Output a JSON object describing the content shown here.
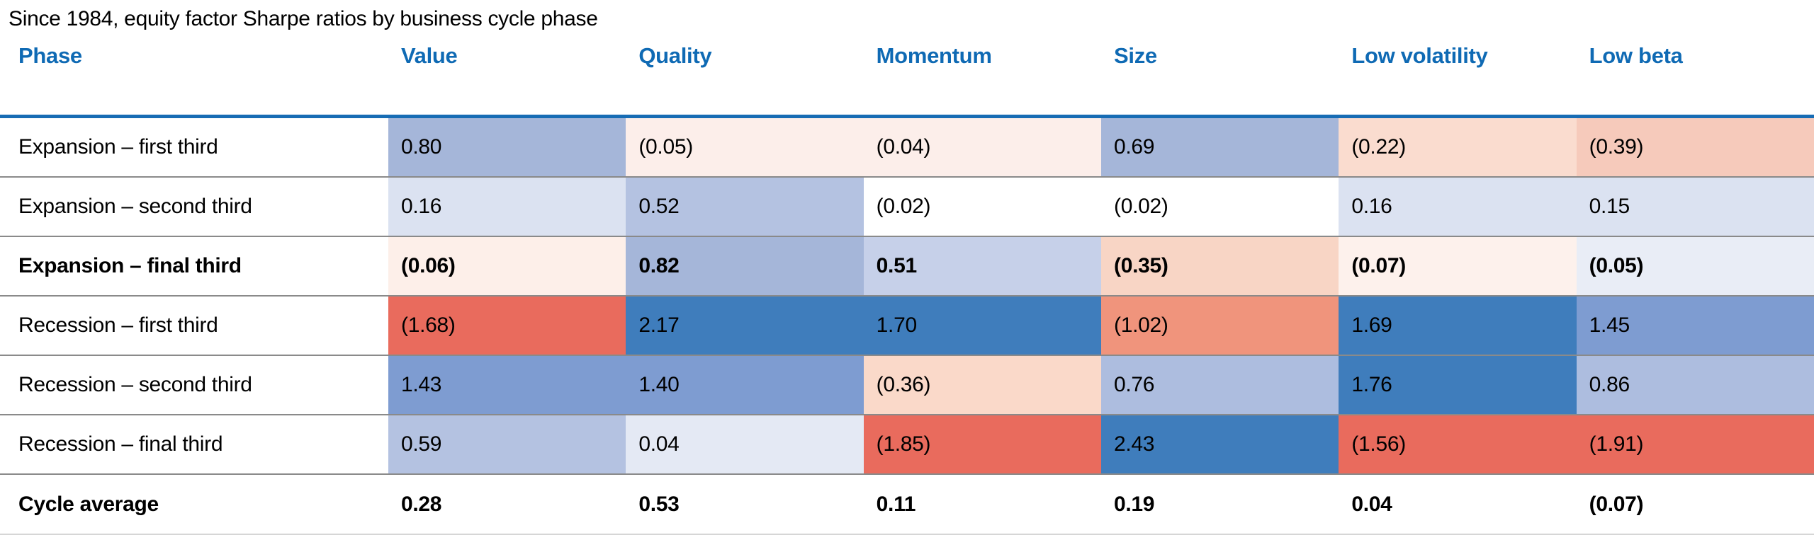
{
  "title": "Since 1984, equity factor Sharpe ratios by business cycle phase",
  "colors": {
    "header_text": "#0f6ab4",
    "header_rule": "#176cb4",
    "row_divider": "#8a8a8a",
    "bottom_rule": "#d6d6d6",
    "positive_strong": "#3f7dbc",
    "negative_strong": "#e96b5d"
  },
  "table": {
    "columns": [
      "Phase",
      "Value",
      "Quality",
      "Momentum",
      "Size",
      "Low volatility",
      "Low beta"
    ],
    "rows": [
      {
        "label": "Expansion – first third",
        "bold": false,
        "cycle_average": false,
        "cells": [
          {
            "text": "0.80",
            "bg": "#a5b6d9"
          },
          {
            "text": "(0.05)",
            "bg": "#fceeea"
          },
          {
            "text": "(0.04)",
            "bg": "#fceeea"
          },
          {
            "text": "0.69",
            "bg": "#a5b6d9"
          },
          {
            "text": "(0.22)",
            "bg": "#fadccf"
          },
          {
            "text": "(0.39)",
            "bg": "#f6cabb"
          }
        ]
      },
      {
        "label": "Expansion – second third",
        "bold": false,
        "cycle_average": false,
        "cells": [
          {
            "text": "0.16",
            "bg": "#dbe2f1"
          },
          {
            "text": "0.52",
            "bg": "#b4c2e1"
          },
          {
            "text": "(0.02)",
            "bg": "#ffffff"
          },
          {
            "text": "(0.02)",
            "bg": "#ffffff"
          },
          {
            "text": "0.16",
            "bg": "#dbe2f1"
          },
          {
            "text": "0.15",
            "bg": "#dbe2f1"
          }
        ]
      },
      {
        "label": "Expansion – final third",
        "bold": true,
        "cycle_average": false,
        "cells": [
          {
            "text": "(0.06)",
            "bg": "#fdefe9"
          },
          {
            "text": "0.82",
            "bg": "#a5b6d9"
          },
          {
            "text": "0.51",
            "bg": "#c6d0e9"
          },
          {
            "text": "(0.35)",
            "bg": "#f8d5c5"
          },
          {
            "text": "(0.07)",
            "bg": "#fdf1ec"
          },
          {
            "text": "(0.05)",
            "bg": "#e9edf6"
          }
        ]
      },
      {
        "label": "Recession – first third",
        "bold": false,
        "cycle_average": false,
        "cells": [
          {
            "text": "(1.68)",
            "bg": "#e96b5d"
          },
          {
            "text": "2.17",
            "bg": "#3f7dbc"
          },
          {
            "text": "1.70",
            "bg": "#3f7dbc"
          },
          {
            "text": "(1.02)",
            "bg": "#f0947c"
          },
          {
            "text": "1.69",
            "bg": "#3f7dbc"
          },
          {
            "text": "1.45",
            "bg": "#7e9cd1"
          }
        ]
      },
      {
        "label": "Recession – second third",
        "bold": false,
        "cycle_average": false,
        "cells": [
          {
            "text": "1.43",
            "bg": "#7e9cd1"
          },
          {
            "text": "1.40",
            "bg": "#7e9cd1"
          },
          {
            "text": "(0.36)",
            "bg": "#fad9c9"
          },
          {
            "text": "0.76",
            "bg": "#adbddf"
          },
          {
            "text": "1.76",
            "bg": "#3f7dbc"
          },
          {
            "text": "0.86",
            "bg": "#adbddf"
          }
        ]
      },
      {
        "label": "Recession – final third",
        "bold": false,
        "cycle_average": false,
        "cells": [
          {
            "text": "0.59",
            "bg": "#b4c2e1"
          },
          {
            "text": "0.04",
            "bg": "#e4e9f4"
          },
          {
            "text": "(1.85)",
            "bg": "#e96b5d"
          },
          {
            "text": "2.43",
            "bg": "#3f7dbc"
          },
          {
            "text": "(1.56)",
            "bg": "#e96b5d"
          },
          {
            "text": "(1.91)",
            "bg": "#e96b5d"
          }
        ]
      },
      {
        "label": "Cycle average",
        "bold": true,
        "cycle_average": true,
        "cells": [
          {
            "text": "0.28",
            "bg": "#ffffff"
          },
          {
            "text": "0.53",
            "bg": "#ffffff"
          },
          {
            "text": "0.11",
            "bg": "#ffffff"
          },
          {
            "text": "0.19",
            "bg": "#ffffff"
          },
          {
            "text": "0.04",
            "bg": "#ffffff"
          },
          {
            "text": "(0.07)",
            "bg": "#ffffff"
          }
        ]
      }
    ]
  },
  "chart_data": {
    "type": "heatmap",
    "title": "Since 1984, equity factor Sharpe ratios by business cycle phase",
    "columns": [
      "Value",
      "Quality",
      "Momentum",
      "Size",
      "Low volatility",
      "Low beta"
    ],
    "rows": [
      "Expansion – first third",
      "Expansion – second third",
      "Expansion – final third",
      "Recession – first third",
      "Recession – second third",
      "Recession – final third",
      "Cycle average"
    ],
    "values": [
      [
        0.8,
        -0.05,
        -0.04,
        0.69,
        -0.22,
        -0.39
      ],
      [
        0.16,
        0.52,
        -0.02,
        -0.02,
        0.16,
        0.15
      ],
      [
        -0.06,
        0.82,
        0.51,
        -0.35,
        -0.07,
        -0.05
      ],
      [
        -1.68,
        2.17,
        1.7,
        -1.02,
        1.69,
        1.45
      ],
      [
        1.43,
        1.4,
        -0.36,
        0.76,
        1.76,
        0.86
      ],
      [
        0.59,
        0.04,
        -1.85,
        2.43,
        -1.56,
        -1.91
      ],
      [
        0.28,
        0.53,
        0.11,
        0.19,
        0.04,
        -0.07
      ]
    ],
    "value_format": "negative-in-parentheses",
    "color_scale": {
      "positive": "blue",
      "negative": "red",
      "strong_positive_hex": "#3f7dbc",
      "strong_negative_hex": "#e96b5d"
    },
    "bold_rows": [
      "Expansion – final third",
      "Cycle average"
    ]
  }
}
